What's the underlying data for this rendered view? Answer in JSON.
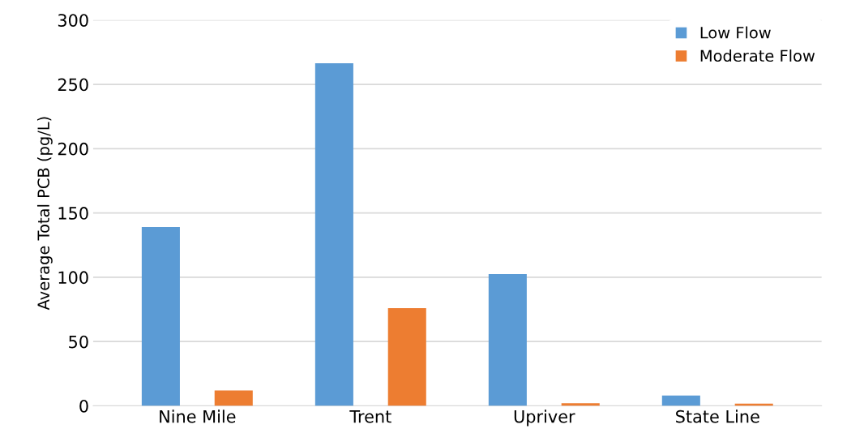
{
  "chart_data": {
    "type": "bar",
    "ylabel": "Average Total PCB (pg/L)",
    "categories": [
      "Nine Mile",
      "Trent",
      "Upriver",
      "State Line"
    ],
    "series": [
      {
        "name": "Low Flow",
        "color": "#5b9bd5",
        "values": [
          139,
          266.5,
          102.5,
          8
        ]
      },
      {
        "name": "Moderate Flow",
        "color": "#ed7d31",
        "values": [
          12,
          76,
          2,
          1.7
        ]
      }
    ],
    "ylim": [
      0,
      300
    ],
    "yticks": [
      0,
      50,
      100,
      150,
      200,
      250,
      300
    ],
    "grid": "y",
    "legend": "top right"
  }
}
